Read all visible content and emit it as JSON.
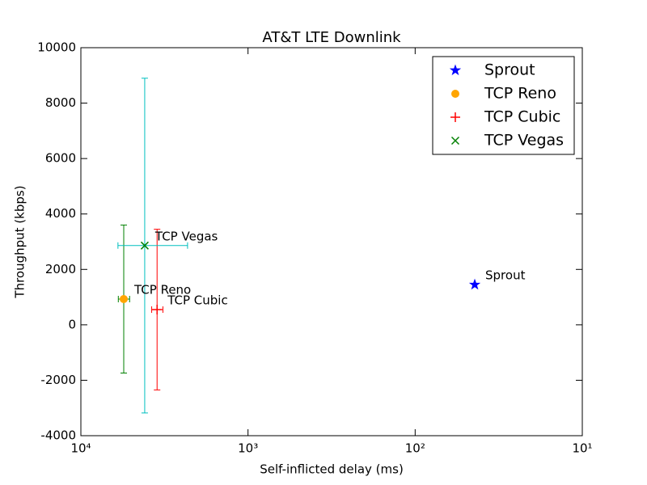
{
  "chart_data": {
    "type": "errorbar-scatter",
    "title": "AT&T LTE Downlink",
    "x_label": "Self-inflicted delay (ms)",
    "y_label": "Throughput (kbps)",
    "xscale": "log",
    "xlim": [
      10000,
      10
    ],
    "ylim": [
      -4000,
      10000
    ],
    "xticks": [
      {
        "value": 10000,
        "label": "10⁴"
      },
      {
        "value": 1000,
        "label": "10³"
      },
      {
        "value": 100,
        "label": "10²"
      },
      {
        "value": 10,
        "label": "10¹"
      }
    ],
    "yticks": [
      -4000,
      -2000,
      0,
      2000,
      4000,
      6000,
      8000,
      10000
    ],
    "legend": "upper right",
    "series": [
      {
        "name": "Sprout",
        "marker": "star",
        "color": "#0000ff",
        "error_color": "#0000ff",
        "x": 44,
        "y": 1450,
        "xerr": 0,
        "yerr": 0
      },
      {
        "name": "TCP Reno",
        "marker": "circle",
        "color": "#ffa500",
        "error_color": "#008000",
        "x": 5540,
        "y": 930,
        "xerr": 430,
        "yerr": 2670
      },
      {
        "name": "TCP Cubic",
        "marker": "plus",
        "color": "#ff0000",
        "error_color": "#ff0000",
        "x": 3500,
        "y": 550,
        "xerr": 270,
        "yerr": 2900
      },
      {
        "name": "TCP Vegas",
        "marker": "x",
        "color": "#008000",
        "error_color": "#00bfbf",
        "x": 4150,
        "y": 2860,
        "xerr": 1850,
        "yerr": 6040
      }
    ]
  }
}
